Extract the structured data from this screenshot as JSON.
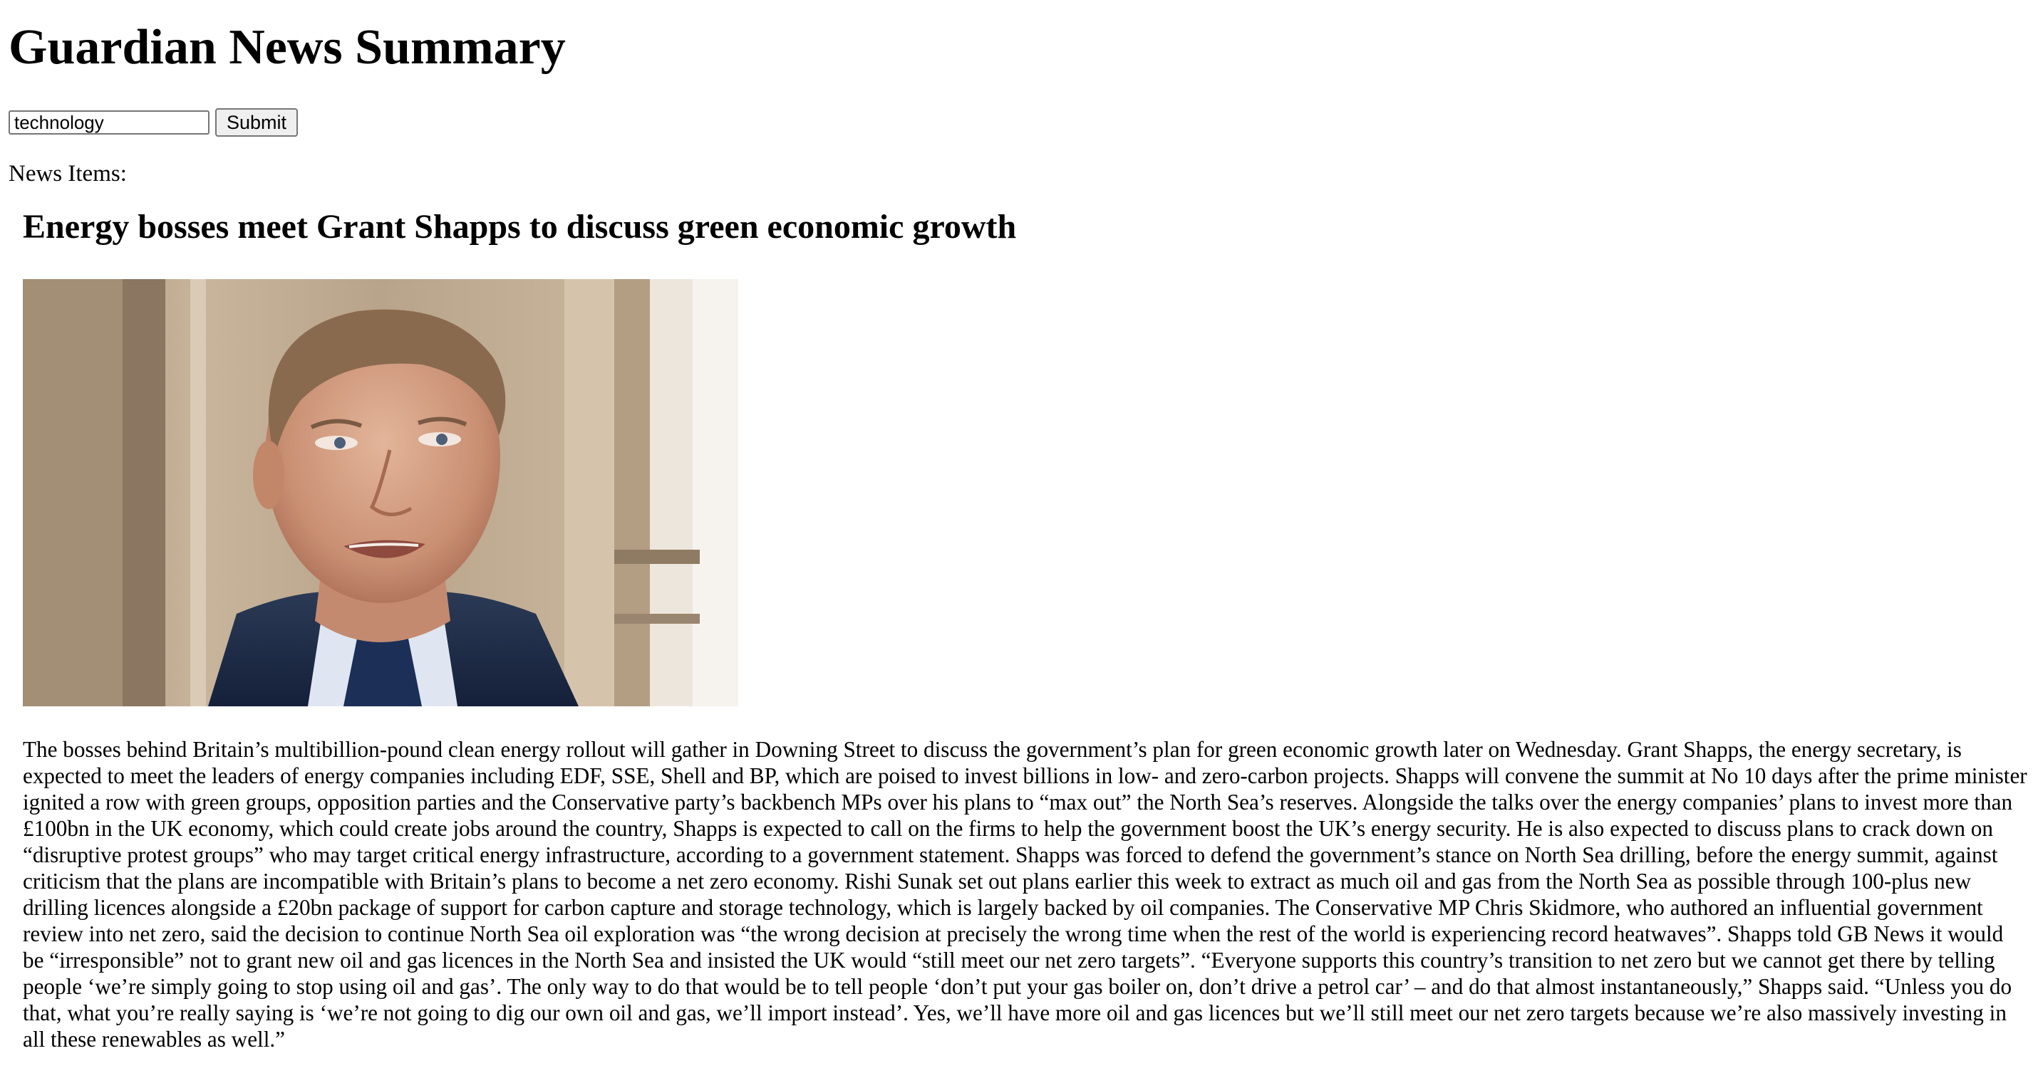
{
  "page": {
    "title": "Guardian News Summary"
  },
  "search": {
    "value": "technology",
    "submit_label": "Submit"
  },
  "news": {
    "section_label": "News Items:",
    "items": [
      {
        "headline": "Energy bosses meet Grant Shapps to discuss green economic growth",
        "image": "portrait-photo",
        "body": "The bosses behind Britain’s multibillion-pound clean energy rollout will gather in Downing Street to discuss the government’s plan for green economic growth later on Wednesday. Grant Shapps, the energy secretary, is expected to meet the leaders of energy companies including EDF, SSE, Shell and BP, which are poised to invest billions in low- and zero-carbon projects. Shapps will convene the summit at No 10 days after the prime minister ignited a row with green groups, opposition parties and the Conservative party’s backbench MPs over his plans to “max out” the North Sea’s reserves. Alongside the talks over the energy companies’ plans to invest more than £100bn in the UK economy, which could create jobs around the country, Shapps is expected to call on the firms to help the government boost the UK’s energy security. He is also expected to discuss plans to crack down on “disruptive protest groups” who may target critical energy infrastructure, according to a government statement. Shapps was forced to defend the government’s stance on North Sea drilling, before the energy summit, against criticism that the plans are incompatible with Britain’s plans to become a net zero economy. Rishi Sunak set out plans earlier this week to extract as much oil and gas from the North Sea as possible through 100-plus new drilling licences alongside a £20bn package of support for carbon capture and storage technology, which is largely backed by oil companies. The Conservative MP Chris Skidmore, who authored an influential government review into net zero, said the decision to continue North Sea oil exploration was “the wrong decision at precisely the wrong time when the rest of the world is experiencing record heatwaves”. Shapps told GB News it would be “irresponsible” not to grant new oil and gas licences in the North Sea and insisted the UK would “still meet our net zero targets”. “Everyone supports this country’s transition to net zero but we cannot get there by telling people ‘we’re simply going to stop using oil and gas’. The only way to do that would be to tell people ‘don’t put your gas boiler on, don’t drive a petrol car’ – and do that almost instantaneously,” Shapps said. “Unless you do that, what you’re really saying is ‘we’re not going to dig our own oil and gas, we’ll import instead’. Yes, we’ll have more oil and gas licences but we’ll still meet our net zero targets because we’re also massively investing in all these renewables as well.”"
      }
    ]
  }
}
